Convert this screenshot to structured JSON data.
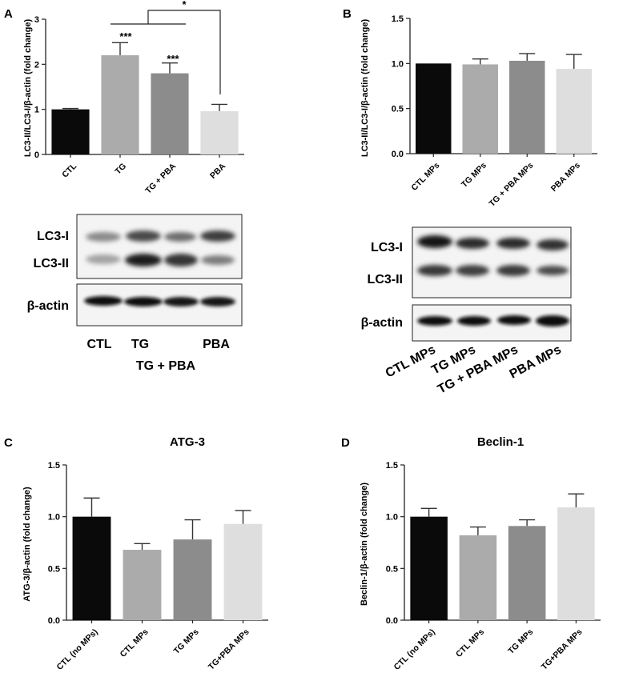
{
  "chart_data": [
    {
      "type": "bar",
      "panel": "A",
      "title": "",
      "ylabel": "LC3-II/LC3-I/β-actin (fold change)",
      "xlabel": "",
      "ylim": [
        0,
        3
      ],
      "yticks": [
        "0",
        "1",
        "2",
        "3"
      ],
      "categories": [
        "CTL",
        "TG",
        "TG + PBA",
        "PBA"
      ],
      "values": [
        1.0,
        2.2,
        1.8,
        0.96
      ],
      "errors": [
        0.02,
        0.28,
        0.23,
        0.15
      ],
      "colors": [
        "#0a0a0a",
        "#ababab",
        "#8c8c8c",
        "#dedede"
      ],
      "significance": {
        "bar_labels": [
          "",
          "***",
          "***",
          ""
        ],
        "bracket_label": "*"
      }
    },
    {
      "type": "bar",
      "panel": "B",
      "title": "",
      "ylabel": "LC3-II/LC3-I/β-actin (fold change)",
      "xlabel": "",
      "ylim": [
        0,
        1.5
      ],
      "yticks": [
        "0.0",
        "0.5",
        "1.0",
        "1.5"
      ],
      "categories": [
        "CTL MPs",
        "TG MPs",
        "TG + PBA MPs",
        "PBA MPs"
      ],
      "values": [
        1.0,
        0.99,
        1.03,
        0.94
      ],
      "errors": [
        0.0,
        0.06,
        0.08,
        0.16
      ],
      "colors": [
        "#0a0a0a",
        "#ababab",
        "#8c8c8c",
        "#dedede"
      ]
    },
    {
      "type": "bar",
      "panel": "C",
      "title": "ATG-3",
      "ylabel": "ATG-3/β-actin (fold change)",
      "xlabel": "",
      "ylim": [
        0,
        1.5
      ],
      "yticks": [
        "0.0",
        "0.5",
        "1.0",
        "1.5"
      ],
      "categories": [
        "CTL (no MPs)",
        "CTL MPs",
        "TG MPs",
        "TG+PBA MPs"
      ],
      "values": [
        1.0,
        0.68,
        0.78,
        0.93
      ],
      "errors": [
        0.18,
        0.06,
        0.19,
        0.13
      ],
      "colors": [
        "#0a0a0a",
        "#ababab",
        "#8c8c8c",
        "#dedede"
      ]
    },
    {
      "type": "bar",
      "panel": "D",
      "title": "Beclin-1",
      "ylabel": "Beclin-1/β-actin (fold change)",
      "xlabel": "",
      "ylim": [
        0,
        1.5
      ],
      "yticks": [
        "0.0",
        "0.5",
        "1.0",
        "1.5"
      ],
      "categories": [
        "CTL (no MPs)",
        "CTL MPs",
        "TG MPs",
        "TG+PBA MPs"
      ],
      "values": [
        1.0,
        0.82,
        0.91,
        1.09
      ],
      "errors": [
        0.08,
        0.08,
        0.06,
        0.13
      ],
      "colors": [
        "#0a0a0a",
        "#ababab",
        "#8c8c8c",
        "#dedede"
      ]
    }
  ],
  "blots": [
    {
      "panel": "A",
      "row_labels": [
        "LC3-I",
        "LC3-II",
        "β-actin"
      ],
      "lane_labels": [
        "CTL",
        "TG",
        "TG + PBA",
        "PBA"
      ]
    },
    {
      "panel": "B",
      "row_labels": [
        "LC3-I",
        "LC3-II",
        "β-actin"
      ],
      "lane_labels": [
        "CTL MPs",
        "TG MPs",
        "TG + PBA MPs",
        "PBA MPs"
      ]
    }
  ]
}
